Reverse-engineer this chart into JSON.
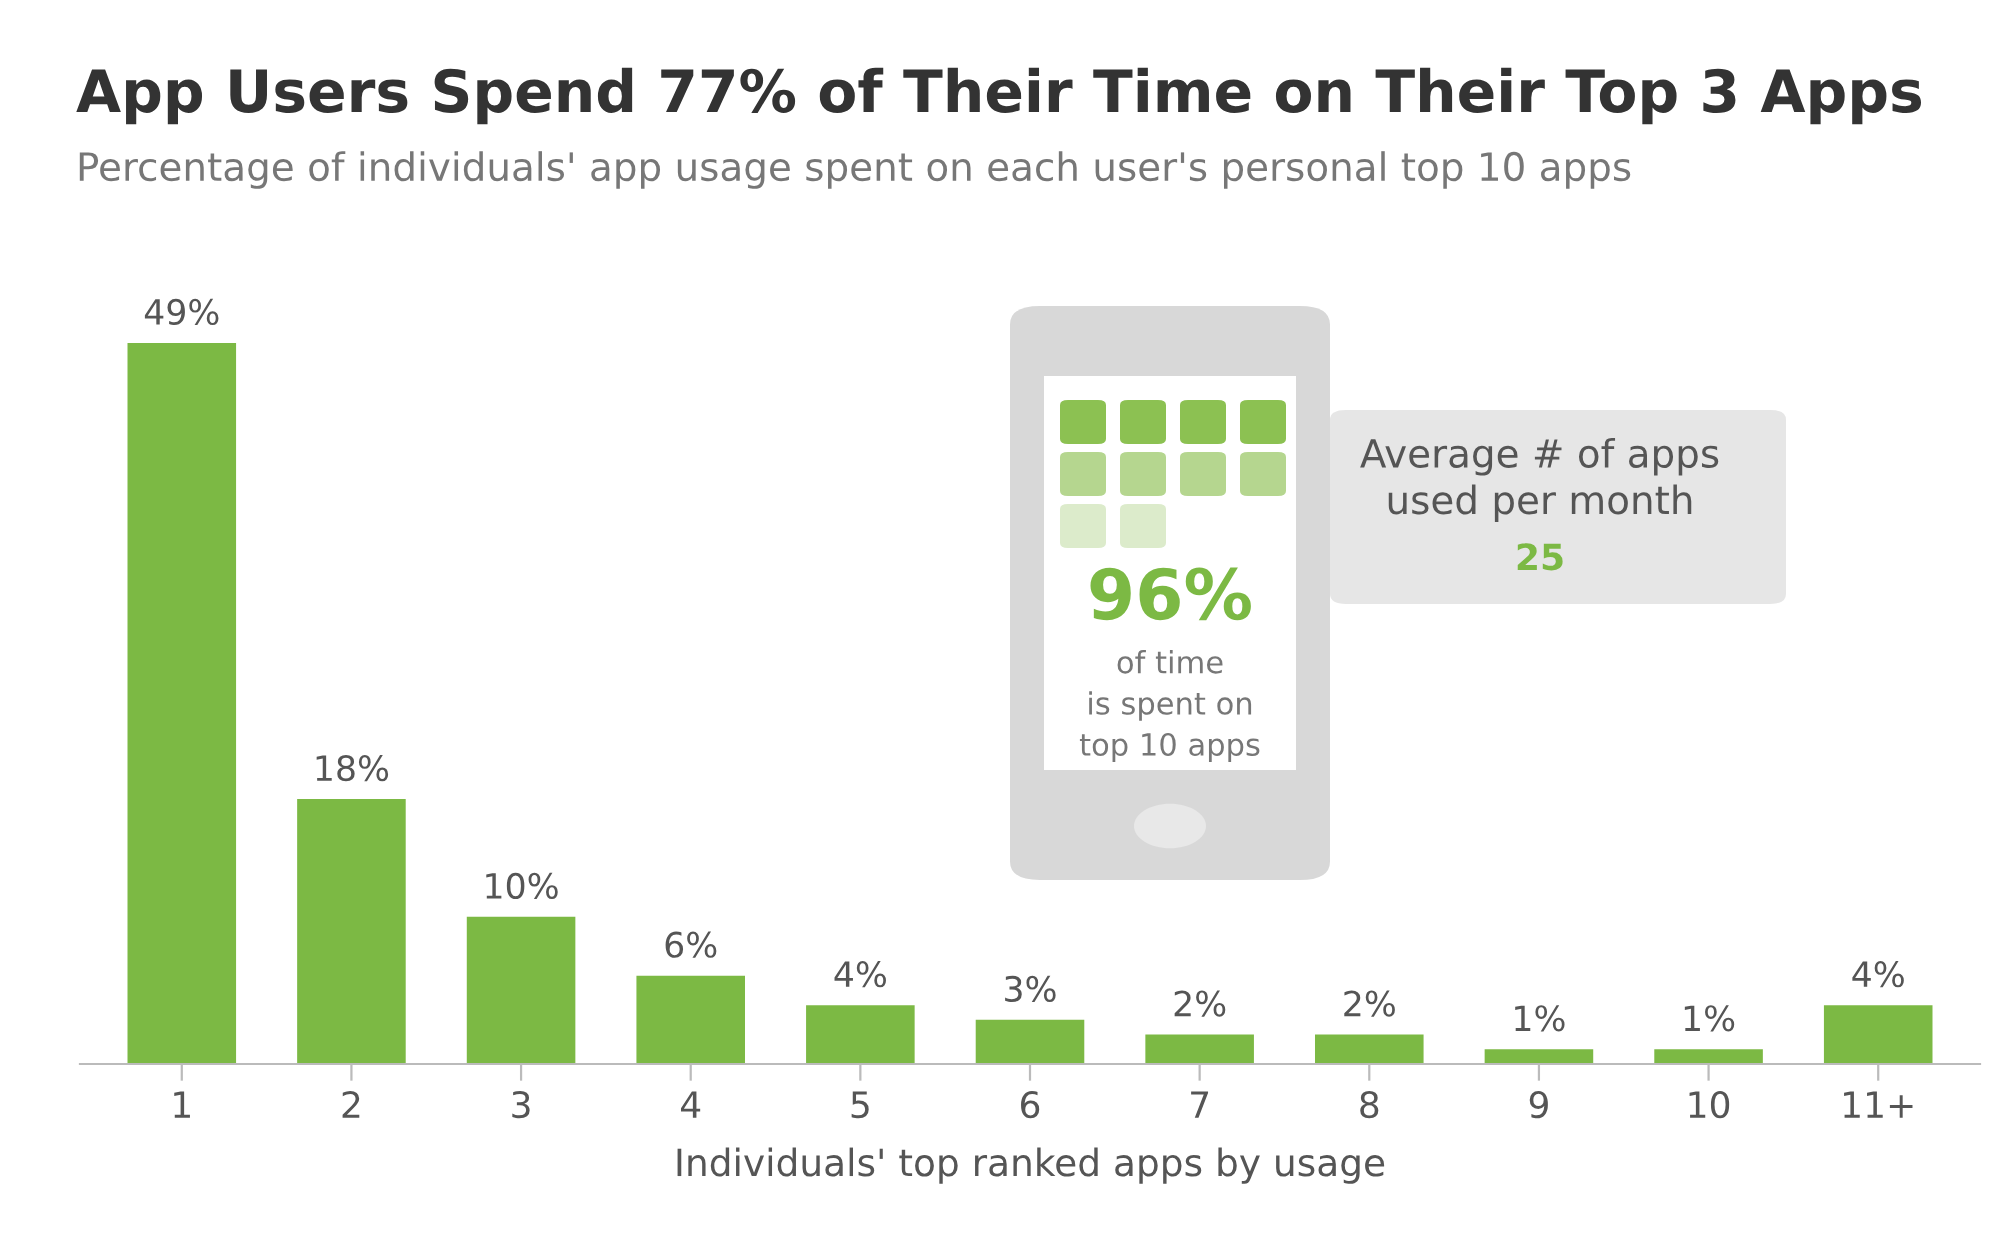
{
  "chart_data": {
    "type": "bar",
    "title": "App Users Spend 77% of Their Time on Their Top 3 Apps",
    "subtitle": "Percentage of individuals' app usage spent on each user's personal top 10 apps",
    "xlabel": "Individuals' top ranked apps by usage",
    "categories": [
      "1",
      "2",
      "3",
      "4",
      "5",
      "6",
      "7",
      "8",
      "9",
      "10",
      "11+"
    ],
    "values": [
      49,
      18,
      10,
      6,
      4,
      3,
      2,
      2,
      1,
      1,
      4
    ],
    "value_labels": [
      "49%",
      "18%",
      "10%",
      "6%",
      "4%",
      "3%",
      "2%",
      "2%",
      "1%",
      "1%",
      "4%"
    ],
    "color": "#7cb944",
    "tick_labels": "x",
    "grid": false,
    "legend": false,
    "annotations": [
      "96%",
      "of time\nis spent on\ntop 10 apps",
      "Average # of apps\nused per month",
      "25"
    ]
  }
}
